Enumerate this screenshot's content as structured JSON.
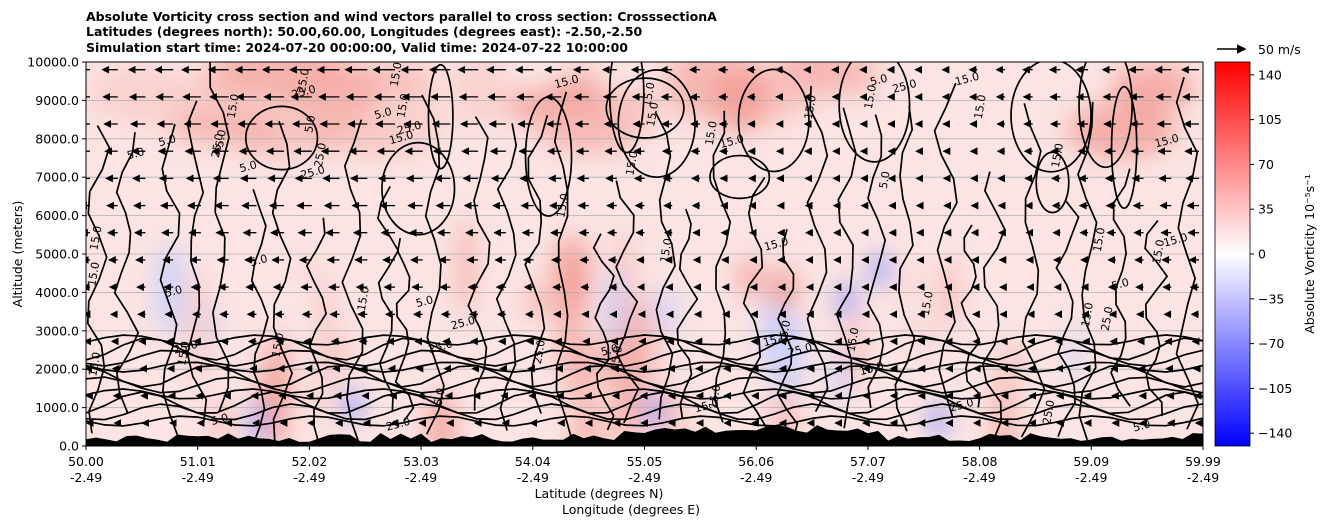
{
  "chart_data": {
    "type": "heatmap",
    "title_lines": [
      "Absolute Vorticity cross section and wind vectors parallel to cross section: CrosssectionA",
      "Latitudes (degrees north): 50.00,60.00, Longitudes (degrees east): -2.50,-2.50",
      "Simulation start time: 2024-07-20 00:00:00, Valid time: 2024-07-22 10:00:00"
    ],
    "ylabel": "Altitude (meters)",
    "xlabel_lines": [
      "Latitude (degrees N)",
      "Longitude (degrees E)"
    ],
    "ylim": [
      0,
      10000
    ],
    "y_ticks": [
      "0.0",
      "1000.0",
      "2000.0",
      "3000.0",
      "4000.0",
      "5000.0",
      "6000.0",
      "7000.0",
      "8000.0",
      "9000.0",
      "10000.0"
    ],
    "x_ticks": [
      {
        "lat": "50.00",
        "lon": "-2.49"
      },
      {
        "lat": "51.01",
        "lon": "-2.49"
      },
      {
        "lat": "52.02",
        "lon": "-2.49"
      },
      {
        "lat": "53.03",
        "lon": "-2.49"
      },
      {
        "lat": "54.04",
        "lon": "-2.49"
      },
      {
        "lat": "55.05",
        "lon": "-2.49"
      },
      {
        "lat": "56.06",
        "lon": "-2.49"
      },
      {
        "lat": "57.07",
        "lon": "-2.49"
      },
      {
        "lat": "58.08",
        "lon": "-2.49"
      },
      {
        "lat": "59.09",
        "lon": "-2.49"
      },
      {
        "lat": "59.99",
        "lon": "-2.49"
      }
    ],
    "colorbar": {
      "label": "Absolute Vorticity 10⁻⁵s⁻¹",
      "range": [
        -150,
        150
      ],
      "ticks": [
        "140",
        "105",
        "70",
        "35",
        "0",
        "−35",
        "−70",
        "−105",
        "−140"
      ],
      "colors": {
        "low": "#0000ff",
        "mid": "#ffffff",
        "high": "#ff0000"
      }
    },
    "quiver_key": {
      "label": "50 m/s"
    },
    "contour_levels": [
      "5.0",
      "15.0",
      "25.0"
    ],
    "contour_labels": [
      "15.0",
      "15.0",
      "5.0",
      "15.0",
      "5.0",
      "5.0",
      "15.0",
      "5.0",
      "15.0",
      "15.0",
      "15.0",
      "25.0",
      "15.0",
      "15.0",
      "25.0",
      "15.0",
      "15.0",
      "15.0",
      "25.0",
      "15.0",
      "15.0",
      "15.0",
      "5.0",
      "15.0",
      "15.0",
      "25.0",
      "15.0",
      "25.0",
      "15.0",
      "25.0",
      "5.0",
      "25.0",
      "25.0",
      "25.0",
      "15.0",
      "15.0",
      "15.0",
      "15.0",
      "5.0",
      "15.0",
      "5.0",
      "15.0",
      "25.0",
      "5.0",
      "5.0",
      "25.0",
      "15.0",
      "25.0",
      "15.0",
      "25.0",
      "5.0",
      "15.0",
      "15.0",
      "25.0",
      "15.0",
      "5.0",
      "25.0",
      "5.0",
      "15.0",
      "15.0",
      "25.0",
      "5.0",
      "15.0",
      "15.0",
      "5.0",
      "15.0",
      "15.0",
      "25.0",
      "5.0"
    ],
    "background_colors": {
      "plot_bg": "#fbe4e2",
      "grid": "#b0b0b0",
      "terrain": "#000000"
    }
  }
}
